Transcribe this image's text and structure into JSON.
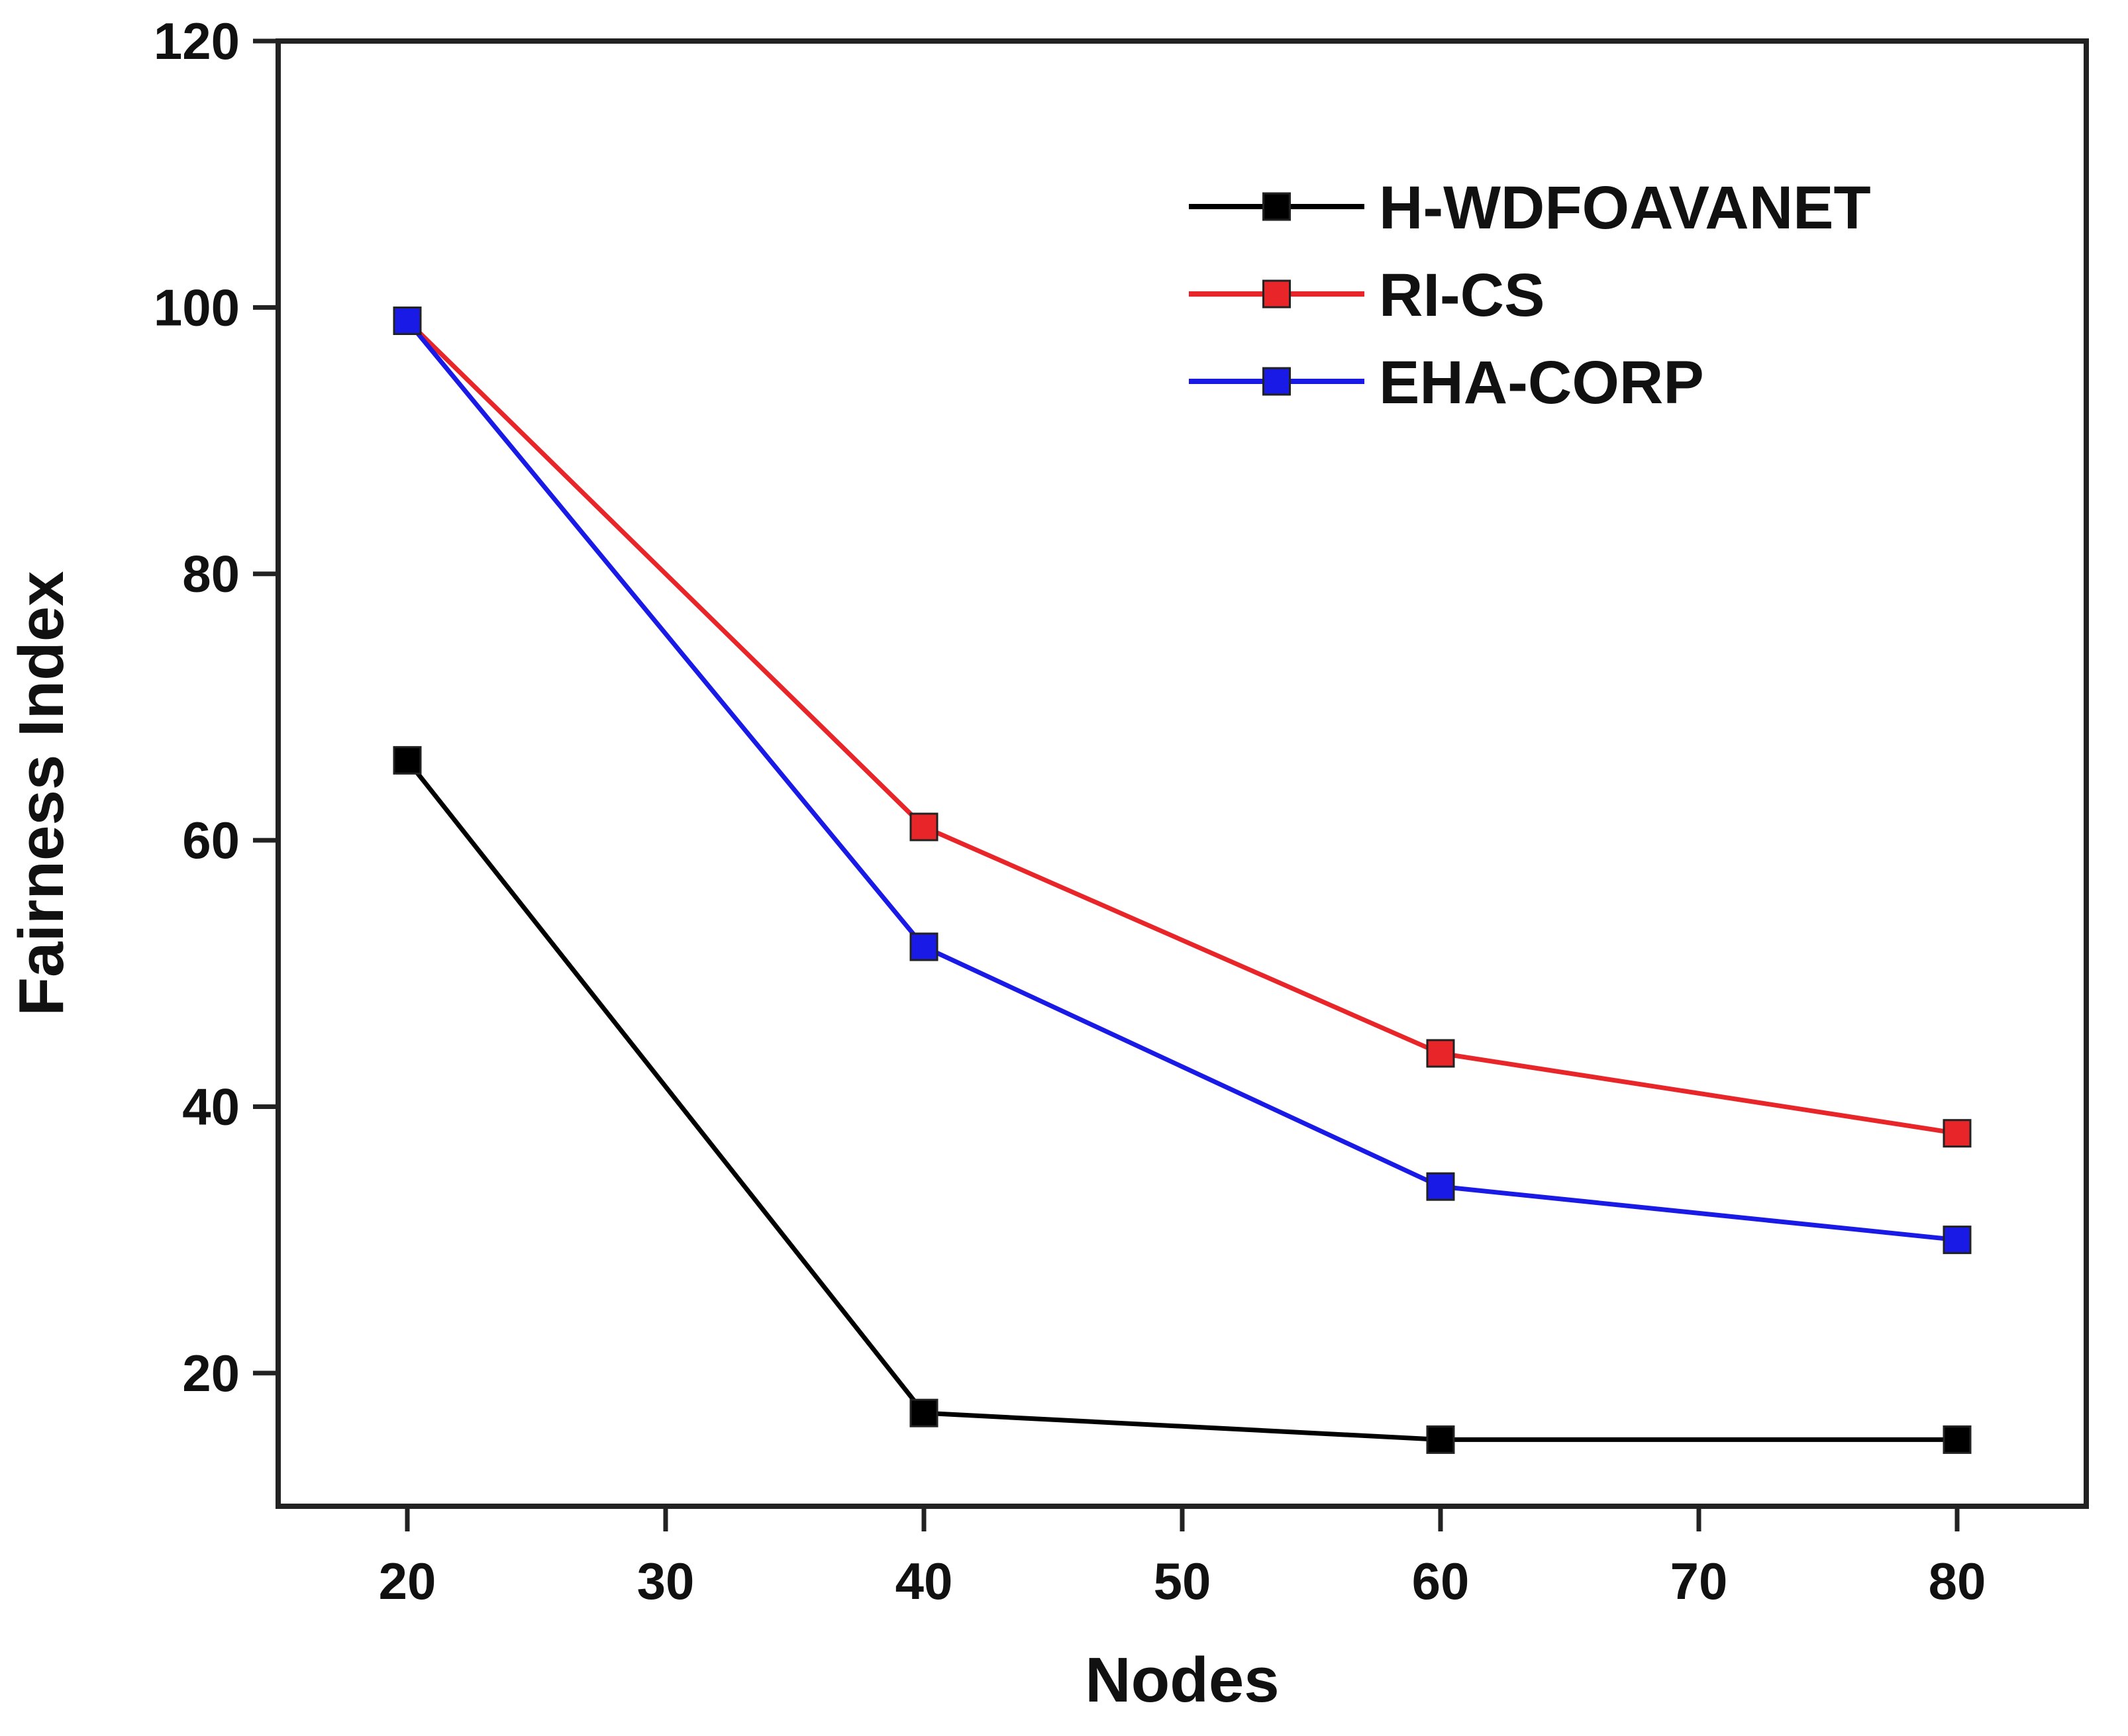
{
  "chart_data": {
    "type": "line",
    "title": "",
    "xlabel": "Nodes",
    "ylabel": "Fairness Index",
    "xlim": [
      15,
      85
    ],
    "ylim": [
      10,
      120
    ],
    "x_ticks": [
      20,
      30,
      40,
      50,
      60,
      70,
      80
    ],
    "y_ticks": [
      20,
      40,
      60,
      80,
      100,
      120
    ],
    "grid": false,
    "legend_position": "top-right",
    "x": [
      20,
      40,
      60,
      80
    ],
    "series": [
      {
        "name": "H-WDFOAVANET",
        "color": "#000000",
        "marker": "square",
        "values": [
          66,
          17,
          15,
          15
        ]
      },
      {
        "name": "RI-CS",
        "color": "#e8262a",
        "marker": "square",
        "values": [
          99,
          61,
          44,
          38
        ]
      },
      {
        "name": "EHA-CORP",
        "color": "#1a1ae6",
        "marker": "square",
        "values": [
          99,
          52,
          34,
          30
        ]
      }
    ]
  }
}
